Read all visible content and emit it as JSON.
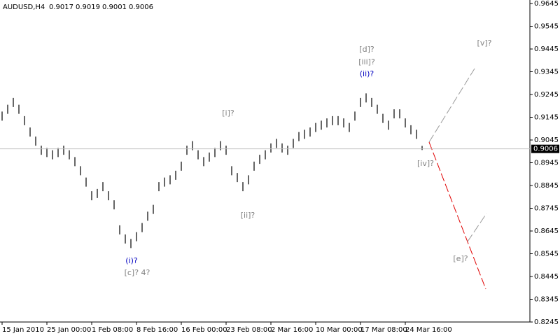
{
  "chart_data": {
    "type": "range",
    "symbol": "AUDUSD,H4",
    "ohlc": [
      0.9017,
      0.9019,
      0.9001,
      0.9006
    ],
    "last_price": 0.9006,
    "color": "#000000",
    "ylim": [
      0.8245,
      0.9645
    ],
    "yticks": [
      0.9645,
      0.9545,
      0.9445,
      0.9345,
      0.9245,
      0.9145,
      0.9045,
      0.8945,
      0.8845,
      0.8745,
      0.8645,
      0.8545,
      0.8445,
      0.8345,
      0.8245
    ],
    "categories": [
      "15 Jan 2010",
      null,
      null,
      null,
      null,
      null,
      null,
      null,
      "25 Jan 00:00",
      null,
      null,
      null,
      null,
      null,
      null,
      null,
      "1 Feb 08:00",
      null,
      null,
      null,
      null,
      null,
      null,
      null,
      "8 Feb 16:00",
      null,
      null,
      null,
      null,
      null,
      null,
      null,
      "16 Feb 00:00",
      null,
      null,
      null,
      null,
      null,
      null,
      null,
      "23 Feb 08:00",
      null,
      null,
      null,
      null,
      null,
      null,
      null,
      "2 Mar 16:00",
      null,
      null,
      null,
      null,
      null,
      null,
      null,
      "10 Mar 00:00",
      null,
      null,
      null,
      null,
      null,
      null,
      null,
      "17 Mar 08:00",
      null,
      null,
      null,
      null,
      null,
      null,
      null,
      "24 Mar 16:00",
      null,
      null,
      null
    ],
    "high": [
      0.917,
      0.92,
      0.923,
      0.92,
      0.915,
      0.91,
      0.906,
      0.902,
      0.901,
      0.9,
      0.901,
      0.902,
      0.9,
      0.897,
      0.893,
      0.888,
      0.882,
      0.883,
      0.886,
      0.882,
      0.878,
      0.867,
      0.863,
      0.861,
      0.864,
      0.868,
      0.873,
      0.876,
      0.886,
      0.888,
      0.889,
      0.891,
      0.895,
      0.902,
      0.904,
      0.9,
      0.897,
      0.899,
      0.901,
      0.904,
      0.902,
      0.893,
      0.89,
      0.886,
      0.889,
      0.895,
      0.898,
      0.9,
      0.903,
      0.905,
      0.903,
      0.902,
      0.905,
      0.908,
      0.909,
      0.91,
      0.912,
      0.913,
      0.914,
      0.915,
      0.915,
      0.914,
      0.912,
      0.917,
      0.923,
      0.925,
      0.923,
      0.92,
      0.916,
      0.913,
      0.918,
      0.918,
      0.914,
      0.911,
      0.909,
      0.9019
    ],
    "low": [
      0.913,
      0.916,
      0.919,
      0.916,
      0.911,
      0.906,
      0.902,
      0.898,
      0.897,
      0.896,
      0.897,
      0.898,
      0.896,
      0.893,
      0.889,
      0.884,
      0.878,
      0.879,
      0.882,
      0.878,
      0.874,
      0.863,
      0.859,
      0.857,
      0.86,
      0.864,
      0.869,
      0.872,
      0.882,
      0.884,
      0.885,
      0.887,
      0.891,
      0.898,
      0.9,
      0.896,
      0.893,
      0.895,
      0.897,
      0.9,
      0.898,
      0.889,
      0.886,
      0.882,
      0.885,
      0.891,
      0.894,
      0.896,
      0.899,
      0.901,
      0.899,
      0.898,
      0.901,
      0.904,
      0.905,
      0.906,
      0.908,
      0.909,
      0.91,
      0.911,
      0.911,
      0.91,
      0.908,
      0.913,
      0.919,
      0.921,
      0.919,
      0.916,
      0.912,
      0.909,
      0.914,
      0.914,
      0.91,
      0.907,
      0.905,
      0.9001
    ],
    "annotations": [
      {
        "text": "[d]?",
        "color": "#808080"
      },
      {
        "text": "[iii]?",
        "color": "#808080"
      },
      {
        "text": "(ii)?",
        "color": "#0000c0"
      },
      {
        "text": "[v]?",
        "color": "#808080"
      },
      {
        "text": "[i]?",
        "color": "#808080"
      },
      {
        "text": "[iv]?",
        "color": "#808080"
      },
      {
        "text": "[ii]?",
        "color": "#808080"
      },
      {
        "text": "(i)?",
        "color": "#0000c0"
      },
      {
        "text": "[c]? 4?",
        "color": "#808080"
      },
      {
        "text": "[e]?",
        "color": "#808080"
      }
    ]
  }
}
